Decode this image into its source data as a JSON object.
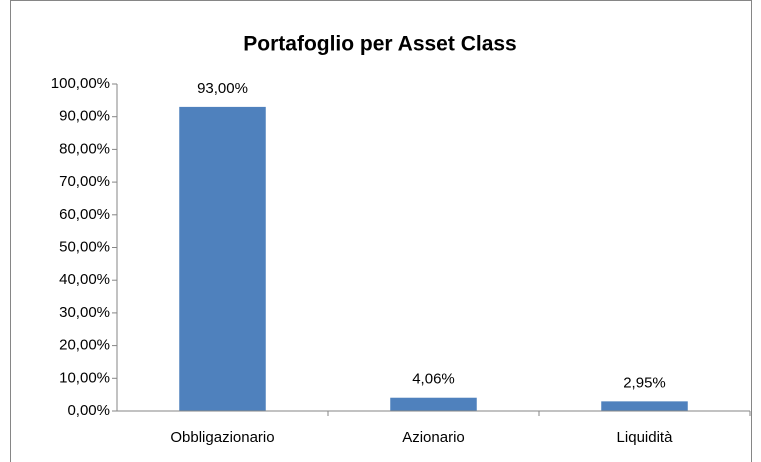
{
  "chart_data": {
    "type": "bar",
    "title": "Portafoglio per Asset Class",
    "categories": [
      "Obbligazionario",
      "Azionario",
      "Liquidità"
    ],
    "values": [
      93.0,
      4.06,
      2.95
    ],
    "value_labels": [
      "93,00%",
      "4,06%",
      "2,95%"
    ],
    "color": "#4f81bd",
    "ylim": [
      0,
      100
    ],
    "yticks": [
      {
        "value": 0,
        "label": "0,00%"
      },
      {
        "value": 10,
        "label": "10,00%"
      },
      {
        "value": 20,
        "label": "20,00%"
      },
      {
        "value": 30,
        "label": "30,00%"
      },
      {
        "value": 40,
        "label": "40,00%"
      },
      {
        "value": 50,
        "label": "50,00%"
      },
      {
        "value": 60,
        "label": "60,00%"
      },
      {
        "value": 70,
        "label": "70,00%"
      },
      {
        "value": 80,
        "label": "80,00%"
      },
      {
        "value": 90,
        "label": "90,00%"
      },
      {
        "value": 100,
        "label": "100,00%"
      }
    ],
    "grid": false
  }
}
